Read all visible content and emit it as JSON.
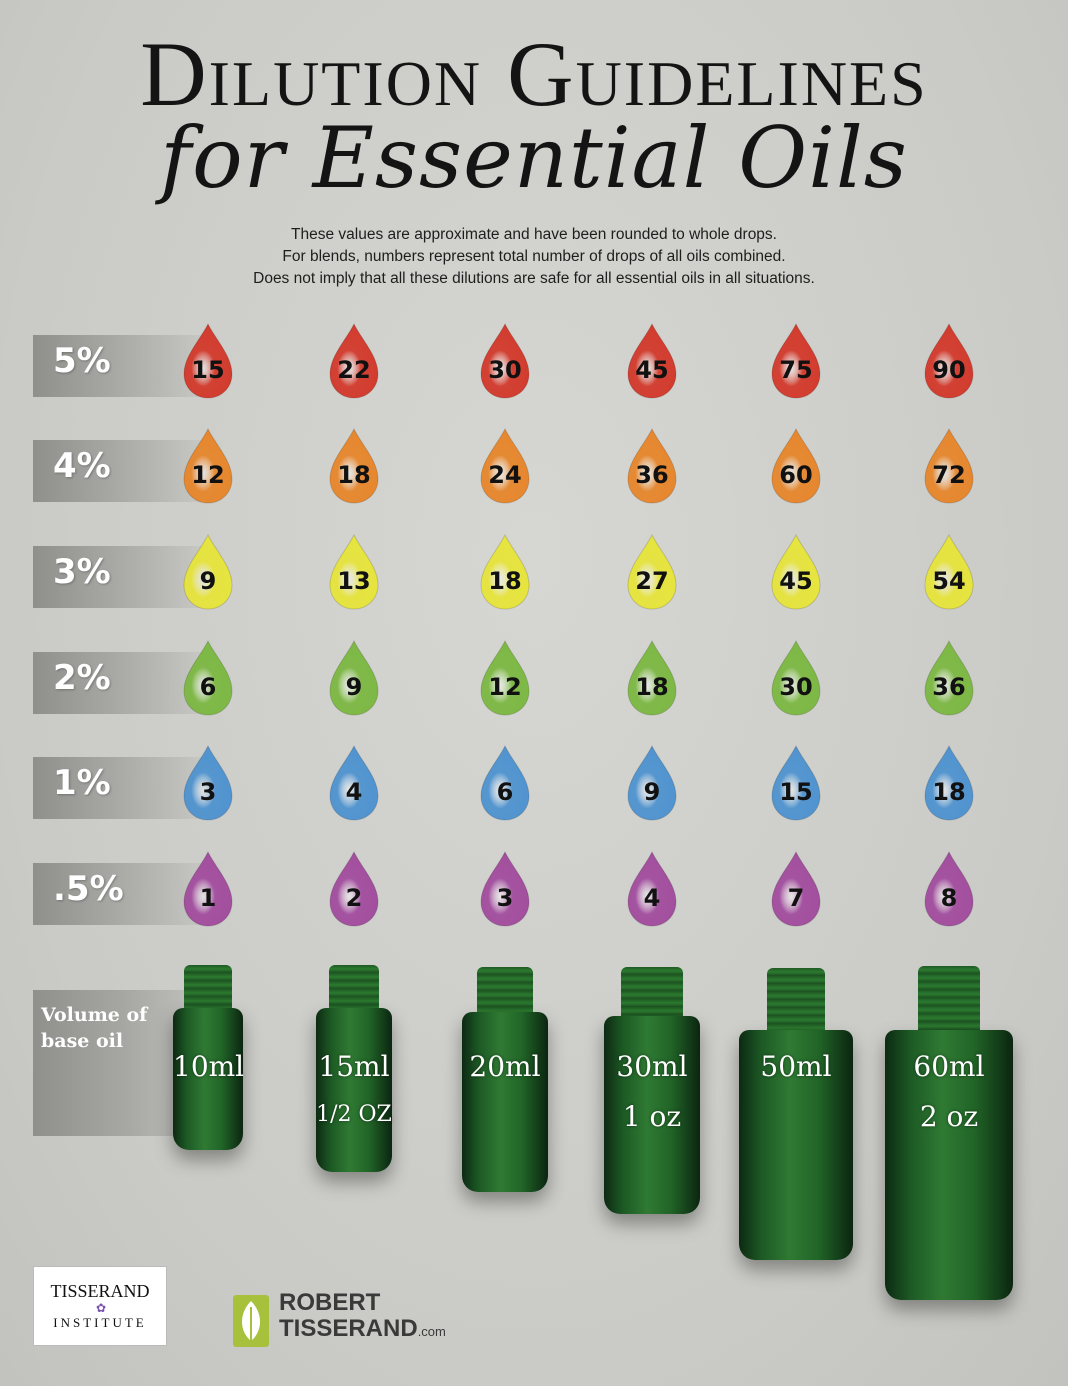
{
  "title": {
    "line1": "Dilution Guidelines",
    "line2": "for Essential Oils"
  },
  "notes": [
    "These values are approximate and have been rounded to whole drops.",
    "For blends, numbers represent total number of drops of all oils combined.",
    "Does not imply that all these dilutions are safe for all essential oils in all situations."
  ],
  "rows": [
    {
      "label": "5%",
      "color": "#d23a2c",
      "drops": [
        "15",
        "22",
        "30",
        "45",
        "75",
        "90"
      ]
    },
    {
      "label": "4%",
      "color": "#e6862c",
      "drops": [
        "12",
        "18",
        "24",
        "36",
        "60",
        "72"
      ]
    },
    {
      "label": "3%",
      "color": "#e6e43c",
      "drops": [
        "9",
        "13",
        "18",
        "27",
        "45",
        "54"
      ]
    },
    {
      "label": "2%",
      "color": "#7cb843",
      "drops": [
        "6",
        "9",
        "12",
        "18",
        "30",
        "36"
      ]
    },
    {
      "label": "1%",
      "color": "#4f93cf",
      "drops": [
        "3",
        "4",
        "6",
        "9",
        "15",
        "18"
      ]
    },
    {
      "label": ".5%",
      "color": "#a24d9e",
      "drops": [
        "1",
        "2",
        "3",
        "4",
        "7",
        "8"
      ]
    }
  ],
  "volume_label": "Volume of base oil",
  "bottles": [
    {
      "ml": "10ml",
      "oz": ""
    },
    {
      "ml": "15ml",
      "oz": "1/2 OZ"
    },
    {
      "ml": "20ml",
      "oz": ""
    },
    {
      "ml": "30ml",
      "oz": "1 oz"
    },
    {
      "ml": "50ml",
      "oz": ""
    },
    {
      "ml": "60ml",
      "oz": "2 oz"
    }
  ],
  "logos": {
    "institute_top": "TISSERAND",
    "institute_bottom": "INSTITUTE",
    "rt_line1": "ROBERT",
    "rt_line2": "TISSERAND",
    "rt_suffix": ".com"
  }
}
